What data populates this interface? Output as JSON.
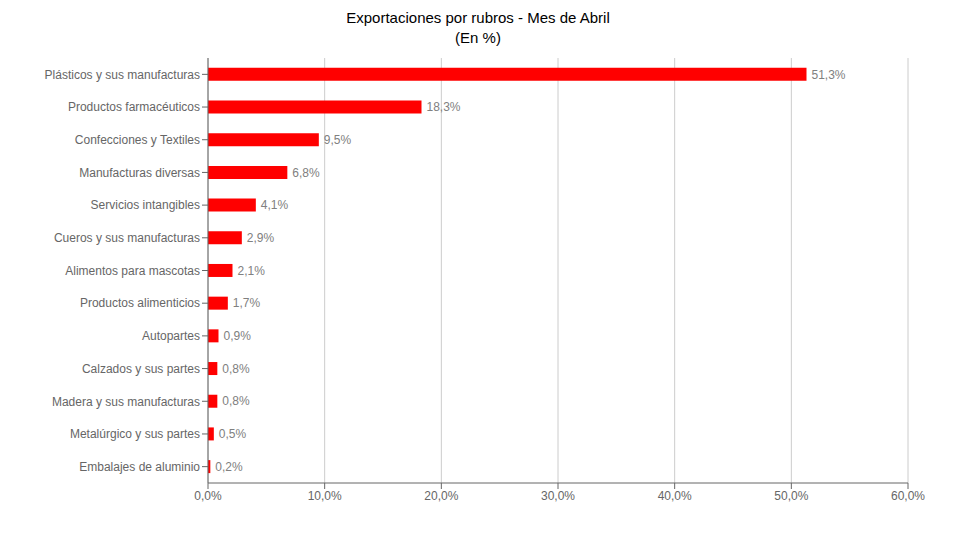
{
  "chart_data": {
    "type": "bar",
    "orientation": "horizontal",
    "title": "Exportaciones por rubros - Mes de Abril",
    "subtitle": "(En %)",
    "categories": [
      "Embalajes de aluminio",
      "Metalúrgico y sus partes",
      "Madera y sus manufacturas",
      "Calzados y sus partes",
      "Autopartes",
      "Productos alimenticios",
      "Alimentos para mascotas",
      "Cueros y sus manufacturas",
      "Servicios intangibles",
      "Manufacturas diversas",
      "Confecciones y Textiles",
      "Productos farmacéuticos",
      "Plásticos y sus manufacturas"
    ],
    "values": [
      0.2,
      0.5,
      0.8,
      0.8,
      0.9,
      1.7,
      2.1,
      2.9,
      4.1,
      6.8,
      9.5,
      18.3,
      51.3
    ],
    "value_labels": [
      "0,2%",
      "0,5%",
      "0,8%",
      "0,8%",
      "0,9%",
      "1,7%",
      "2,1%",
      "2,9%",
      "4,1%",
      "6,8%",
      "9,5%",
      "18,3%",
      "51,3%"
    ],
    "data_labels": true,
    "color": "#FF0000",
    "xlim": [
      0,
      60
    ],
    "xticks": [
      {
        "value": 0,
        "label": "0,0%"
      },
      {
        "value": 10,
        "label": "10,0%"
      },
      {
        "value": 20,
        "label": "20,0%"
      },
      {
        "value": 30,
        "label": "30,0%"
      },
      {
        "value": 40,
        "label": "40,0%"
      },
      {
        "value": 50,
        "label": "50,0%"
      },
      {
        "value": 60,
        "label": "60,0%"
      }
    ],
    "grid": true
  }
}
